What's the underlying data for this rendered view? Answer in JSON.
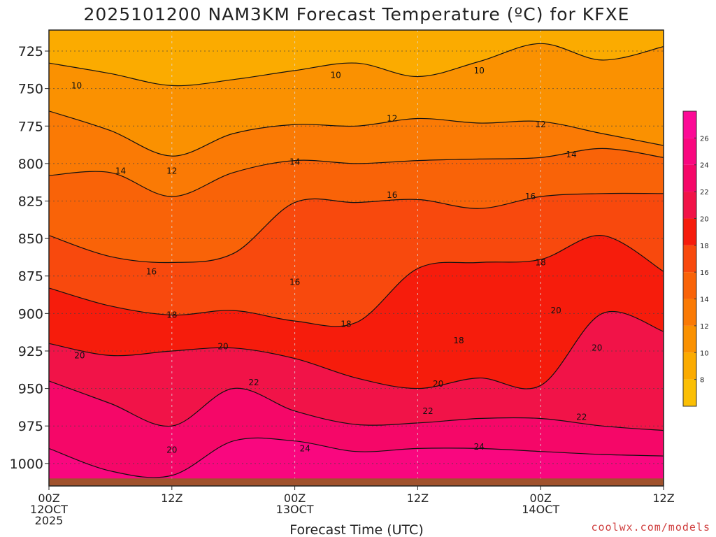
{
  "chart_data": {
    "type": "heatmap",
    "title": "2025101200 NAM3KM Forecast Temperature (ºC) for KFXE",
    "xlabel": "Forecast Time (UTC)",
    "ylabel": "",
    "x_tick_labels": [
      {
        "time": "00Z",
        "date": "12OCT",
        "year": "2025",
        "hour": 0
      },
      {
        "time": "12Z",
        "date": "",
        "year": "",
        "hour": 12
      },
      {
        "time": "00Z",
        "date": "13OCT",
        "year": "",
        "hour": 24
      },
      {
        "time": "12Z",
        "date": "",
        "year": "",
        "hour": 36
      },
      {
        "time": "00Z",
        "date": "14OCT",
        "year": "",
        "hour": 48
      },
      {
        "time": "12Z",
        "date": "",
        "year": "",
        "hour": 60
      }
    ],
    "xlim_hours": [
      0,
      60
    ],
    "y_ticks_hpa": [
      725,
      750,
      775,
      800,
      825,
      850,
      875,
      900,
      925,
      950,
      975,
      1000
    ],
    "ylim_hpa": [
      711,
      1015
    ],
    "ground_level_hpa": 1010,
    "contour_interval": 2,
    "colorbar_ticks": [
      8,
      10,
      12,
      14,
      16,
      18,
      20,
      22,
      24,
      26
    ],
    "color_levels": [
      {
        "min": 6,
        "max": 8,
        "color": "#fbbf04"
      },
      {
        "min": 8,
        "max": 10,
        "color": "#fbab00"
      },
      {
        "min": 10,
        "max": 12,
        "color": "#fa9101"
      },
      {
        "min": 12,
        "max": 14,
        "color": "#fa7a05"
      },
      {
        "min": 14,
        "max": 16,
        "color": "#f96308"
      },
      {
        "min": 16,
        "max": 18,
        "color": "#f8490d"
      },
      {
        "min": 18,
        "max": 20,
        "color": "#f61c0c"
      },
      {
        "min": 20,
        "max": 22,
        "color": "#f11348"
      },
      {
        "min": 22,
        "max": 24,
        "color": "#f50768"
      },
      {
        "min": 24,
        "max": 26,
        "color": "#f9077f"
      },
      {
        "min": 26,
        "max": 28,
        "color": "#fc0a96"
      }
    ],
    "ground_color": "#a0522d",
    "isotherms": [
      {
        "value": 10,
        "hours": [
          0,
          6,
          12,
          18,
          24,
          30,
          36,
          42,
          48,
          54,
          60
        ],
        "pressure": [
          733,
          740,
          748,
          744,
          738,
          733,
          742,
          732,
          720,
          731,
          722
        ]
      },
      {
        "value": 12,
        "hours": [
          0,
          6,
          12,
          18,
          24,
          30,
          36,
          42,
          48,
          54,
          60
        ],
        "pressure": [
          765,
          778,
          795,
          780,
          774,
          775,
          770,
          773,
          772,
          780,
          788
        ]
      },
      {
        "value": 14,
        "hours": [
          0,
          6,
          12,
          18,
          24,
          30,
          36,
          42,
          48,
          54,
          60
        ],
        "pressure": [
          808,
          806,
          822,
          806,
          798,
          800,
          798,
          797,
          796,
          790,
          796
        ]
      },
      {
        "value": 16,
        "hours": [
          0,
          6,
          12,
          18,
          24,
          30,
          36,
          42,
          48,
          54,
          60
        ],
        "pressure": [
          848,
          862,
          866,
          860,
          826,
          826,
          824,
          830,
          822,
          820,
          820
        ]
      },
      {
        "value": 18,
        "hours": [
          0,
          6,
          12,
          18,
          24,
          30,
          36,
          42,
          48,
          54,
          60
        ],
        "pressure": [
          883,
          895,
          901,
          898,
          905,
          906,
          870,
          866,
          864,
          848,
          872
        ]
      },
      {
        "value": 20,
        "hours": [
          0,
          6,
          12,
          18,
          24,
          30,
          36,
          42,
          48,
          54,
          60
        ],
        "pressure": [
          920,
          928,
          925,
          923,
          930,
          943,
          950,
          943,
          948,
          900,
          912
        ]
      },
      {
        "value": 22,
        "hours": [
          0,
          6,
          12,
          18,
          24,
          30,
          36,
          42,
          48,
          54,
          60
        ],
        "pressure": [
          945,
          960,
          975,
          950,
          965,
          974,
          973,
          970,
          970,
          975,
          978
        ]
      },
      {
        "value": 24,
        "hours": [
          0,
          6,
          12,
          18,
          24,
          30,
          36,
          42,
          48,
          54,
          60
        ],
        "pressure": [
          990,
          1005,
          1008,
          985,
          985,
          992,
          990,
          990,
          992,
          994,
          995
        ]
      }
    ],
    "contour_labels": [
      {
        "text": "10",
        "hour": 2.7,
        "pressure": 748
      },
      {
        "text": "10",
        "hour": 28,
        "pressure": 741
      },
      {
        "text": "10",
        "hour": 42,
        "pressure": 738
      },
      {
        "text": "12",
        "hour": 12,
        "pressure": 805
      },
      {
        "text": "12",
        "hour": 33.5,
        "pressure": 770
      },
      {
        "text": "12",
        "hour": 48,
        "pressure": 774
      },
      {
        "text": "14",
        "hour": 7,
        "pressure": 805
      },
      {
        "text": "14",
        "hour": 24,
        "pressure": 799
      },
      {
        "text": "14",
        "hour": 51,
        "pressure": 794
      },
      {
        "text": "16",
        "hour": 10,
        "pressure": 872
      },
      {
        "text": "16",
        "hour": 24,
        "pressure": 879
      },
      {
        "text": "16",
        "hour": 33.5,
        "pressure": 821
      },
      {
        "text": "16",
        "hour": 47,
        "pressure": 822
      },
      {
        "text": "18",
        "hour": 12,
        "pressure": 901
      },
      {
        "text": "18",
        "hour": 29,
        "pressure": 907
      },
      {
        "text": "18",
        "hour": 40,
        "pressure": 918
      },
      {
        "text": "18",
        "hour": 48,
        "pressure": 866
      },
      {
        "text": "20",
        "hour": 3,
        "pressure": 928
      },
      {
        "text": "20",
        "hour": 17,
        "pressure": 922
      },
      {
        "text": "20",
        "hour": 38,
        "pressure": 947
      },
      {
        "text": "20",
        "hour": 49.5,
        "pressure": 898
      },
      {
        "text": "20",
        "hour": 53.5,
        "pressure": 923
      },
      {
        "text": "20",
        "hour": 12,
        "pressure": 991
      },
      {
        "text": "22",
        "hour": 20,
        "pressure": 946
      },
      {
        "text": "22",
        "hour": 37,
        "pressure": 965
      },
      {
        "text": "22",
        "hour": 52,
        "pressure": 969
      },
      {
        "text": "24",
        "hour": 25,
        "pressure": 990
      },
      {
        "text": "24",
        "hour": 42,
        "pressure": 989
      }
    ]
  },
  "credit": "coolwx.com/models"
}
